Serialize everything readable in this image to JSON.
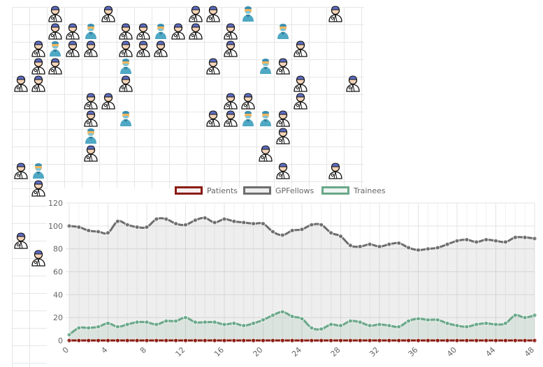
{
  "colors": {
    "patients": "#8b1c12",
    "gpfellows": "#6e6e6e",
    "trainees": "#6aa889",
    "doctor_coat": "#ffffff",
    "doctor_hair": "#5c6bc0",
    "trainee_scrubs": "#4fa8c4"
  },
  "icons": {
    "doctor": "doctor-icon",
    "trainee": "trainee-icon"
  },
  "legend": [
    {
      "label": "Patients"
    },
    {
      "label": "GPFellows"
    },
    {
      "label": "Trainees"
    }
  ],
  "chart_data": {
    "type": "area",
    "x": [
      0,
      1,
      2,
      3,
      4,
      5,
      6,
      7,
      8,
      9,
      10,
      11,
      12,
      13,
      14,
      15,
      16,
      17,
      18,
      19,
      20,
      21,
      22,
      23,
      24,
      25,
      26,
      27,
      28,
      29,
      30,
      31,
      32,
      33,
      34,
      35,
      36,
      37,
      38,
      39,
      40,
      41,
      42,
      43,
      44,
      45,
      46,
      47,
      48
    ],
    "x_tick_labels": [
      "0",
      "4",
      "8",
      "12",
      "16",
      "20",
      "24",
      "28",
      "32",
      "36",
      "40",
      "44",
      "48"
    ],
    "y_tick_labels": [
      "0",
      "20",
      "40",
      "60",
      "80",
      "100",
      "120"
    ],
    "ylim": [
      0,
      120
    ],
    "xlim": [
      0,
      48
    ],
    "grid": true,
    "legend_position": "top",
    "series": [
      {
        "name": "Patients",
        "values": [
          0,
          0,
          0,
          0,
          0,
          0,
          0,
          0,
          0,
          0,
          0,
          0,
          0,
          0,
          0,
          0,
          0,
          0,
          0,
          0,
          0,
          0,
          0,
          0,
          0,
          0,
          0,
          0,
          0,
          0,
          0,
          0,
          0,
          0,
          0,
          0,
          0,
          0,
          0,
          0,
          0,
          0,
          0,
          0,
          0,
          0,
          0,
          0,
          0
        ]
      },
      {
        "name": "GPFellows",
        "values": [
          100,
          99,
          96,
          95,
          94,
          104,
          101,
          99,
          99,
          106,
          106,
          102,
          101,
          105,
          107,
          103,
          106,
          104,
          103,
          102,
          102,
          95,
          92,
          96,
          97,
          101,
          101,
          94,
          91,
          83,
          82,
          84,
          82,
          84,
          85,
          81,
          79,
          80,
          81,
          84,
          87,
          88,
          86,
          88,
          87,
          86,
          90,
          90,
          89
        ]
      },
      {
        "name": "Trainees",
        "values": [
          5,
          11,
          11,
          12,
          15,
          12,
          14,
          16,
          16,
          14,
          17,
          17,
          20,
          16,
          16,
          16,
          14,
          15,
          13,
          15,
          18,
          22,
          25,
          21,
          19,
          11,
          10,
          14,
          13,
          17,
          16,
          13,
          14,
          13,
          12,
          17,
          19,
          18,
          18,
          15,
          13,
          12,
          14,
          15,
          14,
          15,
          22,
          20,
          22
        ]
      }
    ]
  }
}
